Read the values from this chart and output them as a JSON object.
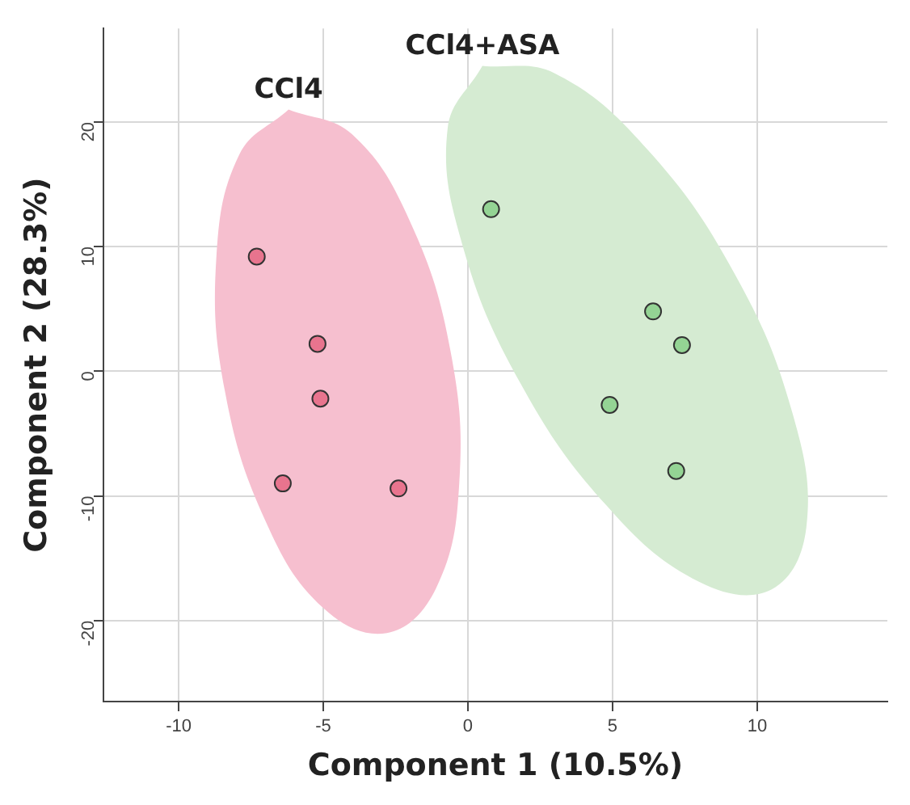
{
  "chart_data": {
    "type": "scatter",
    "xlabel": "Component 1 (10.5%)",
    "ylabel": "Component 2 (28.3%)",
    "xlim": [
      -12.6,
      14.5
    ],
    "ylim": [
      -26.5,
      27.5
    ],
    "xticks": [
      -10,
      -5,
      0,
      5,
      10
    ],
    "yticks": [
      -20,
      -10,
      0,
      10,
      20
    ],
    "grid": true,
    "legend": false,
    "marker": "circle",
    "series": [
      {
        "type": "area",
        "name": "CCl4",
        "marker": "none",
        "color": "#f6bfcf",
        "x": [
          -6.2,
          -4.0,
          -2.0,
          -0.6,
          -0.3,
          -1.1,
          -2.8,
          -5.0,
          -7.0,
          -8.4,
          -8.7,
          -7.9,
          -6.2
        ],
        "values": [
          21,
          19,
          12,
          1.6,
          -9,
          -17.4,
          -21,
          -19,
          -12,
          -1.6,
          9,
          17.4,
          21
        ]
      },
      {
        "type": "area",
        "name": "CCl4+ASA",
        "marker": "none",
        "color": "#d5ebd2",
        "x": [
          0.5,
          3.0,
          6.2,
          9.2,
          11.2,
          11.7,
          10.5,
          8.0,
          4.8,
          1.8,
          -0.2,
          -0.7,
          0.5
        ],
        "values": [
          24.5,
          23.9,
          17.8,
          7.9,
          -3.2,
          -12.5,
          -17.5,
          -16.9,
          -10.8,
          -0.9,
          10.2,
          19.5,
          24.5
        ]
      },
      {
        "type": "scatter",
        "color": "#e8748e",
        "x": [
          -7.3,
          -5.2,
          -5.1,
          -6.4,
          -2.4
        ],
        "values": [
          9.2,
          2.2,
          -2.2,
          -9.0,
          -9.4
        ]
      },
      {
        "type": "scatter",
        "color": "#94d494",
        "x": [
          0.8,
          6.4,
          7.4,
          4.9,
          7.2
        ],
        "values": [
          13.0,
          4.8,
          2.1,
          -2.7,
          -8.0
        ]
      }
    ]
  }
}
